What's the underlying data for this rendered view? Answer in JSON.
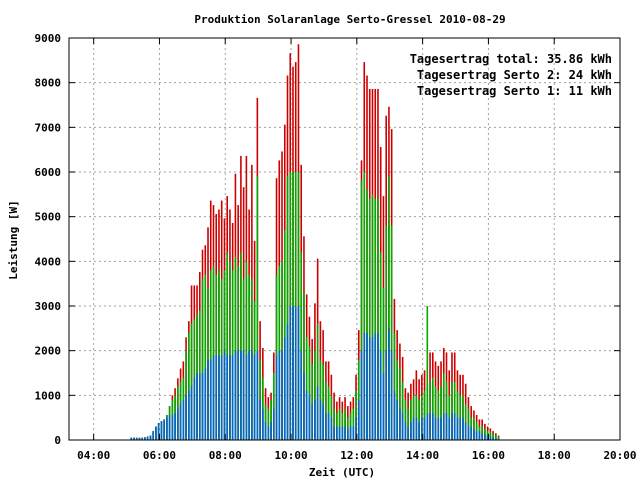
{
  "chart_data": {
    "type": "bar",
    "title": "Produktion Solaranlage Serto-Gressel 2010-08-29",
    "xlabel": "Zeit (UTC)",
    "ylabel": "Leistung [W]",
    "xlim": [
      "03:15",
      "20:00"
    ],
    "ylim": [
      0,
      9000
    ],
    "x_ticks": [
      "04:00",
      "06:00",
      "08:00",
      "10:00",
      "12:00",
      "14:00",
      "16:00",
      "18:00",
      "20:00"
    ],
    "y_ticks": [
      "0",
      "1000",
      "2000",
      "3000",
      "4000",
      "5000",
      "6000",
      "7000",
      "8000",
      "9000"
    ],
    "grid": true,
    "legend_position": "top-right",
    "legend": [
      {
        "text": "Tagesertrag total: 35.86 kWh",
        "color": "#cc0000"
      },
      {
        "text": "Tagesertrag Serto 2: 24 kWh",
        "color": "#00aa00"
      },
      {
        "text": "Tagesertrag Serto 1: 11 kWh",
        "color": "#0066cc"
      }
    ],
    "series": [
      {
        "color": "#cc0000",
        "values": [
          50,
          50,
          50,
          50,
          50,
          60,
          80,
          100,
          200,
          300,
          380,
          420,
          460,
          560,
          760,
          1000,
          1160,
          1380,
          1600,
          1760,
          2300,
          2660,
          3460,
          3460,
          3460,
          3760,
          4260,
          4360,
          4760,
          5360,
          5260,
          5060,
          5160,
          5360,
          4960,
          5460,
          5160,
          4860,
          5960,
          5260,
          6360,
          5660,
          6360,
          5160,
          6160,
          4460,
          7660,
          2660,
          2060,
          1160,
          960,
          1060,
          1960,
          5860,
          6260,
          6460,
          7060,
          8160,
          8660,
          8360,
          8460,
          8860,
          6160,
          4560,
          3260,
          2760,
          2260,
          3060,
          4060,
          2660,
          2460,
          1760,
          1760,
          1460,
          1060,
          860,
          960,
          860,
          960,
          760,
          860,
          960,
          1460,
          2460,
          6260,
          8460,
          8160,
          7860,
          7860,
          7860,
          7860,
          6560,
          5460,
          7260,
          7460,
          6960,
          3160,
          2460,
          2160,
          1860,
          1160,
          1060,
          1260,
          1360,
          1560,
          1360,
          1460,
          1560,
          1160,
          1960,
          1960,
          1760,
          1660,
          1760,
          2060,
          1960,
          1560,
          1960,
          1960,
          1560,
          1460,
          1460,
          1260,
          960,
          760,
          660,
          560,
          460,
          460,
          360,
          300,
          260,
          200,
          150,
          100
        ],
        "name": ""
      },
      {
        "color": "#00aa00",
        "values": [
          50,
          50,
          50,
          50,
          50,
          60,
          80,
          100,
          200,
          300,
          380,
          420,
          460,
          560,
          760,
          900,
          1000,
          1200,
          1300,
          1400,
          2000,
          2400,
          2600,
          2700,
          2800,
          2900,
          3600,
          3700,
          3400,
          3800,
          3900,
          3700,
          3800,
          3600,
          3800,
          4200,
          4000,
          3800,
          4100,
          3900,
          4200,
          3600,
          4000,
          3700,
          3600,
          3100,
          5900,
          1800,
          1400,
          800,
          700,
          900,
          1500,
          3700,
          3900,
          4000,
          4700,
          5900,
          6000,
          6000,
          6000,
          6000,
          4200,
          3300,
          2300,
          2100,
          1700,
          2000,
          2600,
          1800,
          1700,
          1300,
          1200,
          1000,
          700,
          600,
          700,
          600,
          700,
          500,
          600,
          700,
          1100,
          1800,
          5800,
          6000,
          5600,
          5400,
          5500,
          5400,
          5400,
          4200,
          3400,
          4800,
          5900,
          4800,
          2400,
          1800,
          1600,
          1300,
          900,
          700,
          900,
          1000,
          1000,
          900,
          1000,
          1100,
          3000,
          1300,
          1400,
          1200,
          1100,
          1200,
          1500,
          1300,
          1000,
          1300,
          1300,
          1100,
          1000,
          1000,
          800,
          700,
          500,
          500,
          400,
          300,
          300,
          250,
          200,
          180,
          150,
          100,
          80
        ]
      },
      {
        "color": "#0066cc",
        "values": [
          50,
          50,
          50,
          50,
          50,
          60,
          80,
          100,
          200,
          300,
          380,
          420,
          460,
          500,
          560,
          560,
          600,
          700,
          800,
          900,
          1000,
          1100,
          1200,
          1400,
          1500,
          1500,
          1500,
          1600,
          1800,
          1800,
          1900,
          1900,
          1900,
          1900,
          2000,
          1900,
          1900,
          1900,
          2000,
          2000,
          2000,
          2000,
          1900,
          2000,
          2000,
          1900,
          2000,
          900,
          700,
          400,
          300,
          400,
          700,
          1900,
          2000,
          2000,
          2300,
          2600,
          3000,
          3000,
          3000,
          3000,
          2000,
          1500,
          1100,
          1000,
          800,
          900,
          1200,
          900,
          800,
          600,
          600,
          500,
          300,
          300,
          300,
          300,
          300,
          250,
          300,
          300,
          500,
          900,
          2000,
          2400,
          2400,
          2300,
          2300,
          2400,
          2400,
          2000,
          1500,
          2000,
          2500,
          2000,
          1100,
          900,
          700,
          600,
          400,
          300,
          400,
          500,
          500,
          400,
          500,
          500,
          600,
          600,
          600,
          500,
          500,
          500,
          600,
          600,
          500,
          600,
          600,
          500,
          500,
          500,
          400,
          300,
          300,
          250,
          200,
          200,
          150,
          120,
          100,
          80,
          60,
          40,
          30
        ]
      }
    ],
    "x_start": "05:08",
    "x_step_minutes": 5
  }
}
